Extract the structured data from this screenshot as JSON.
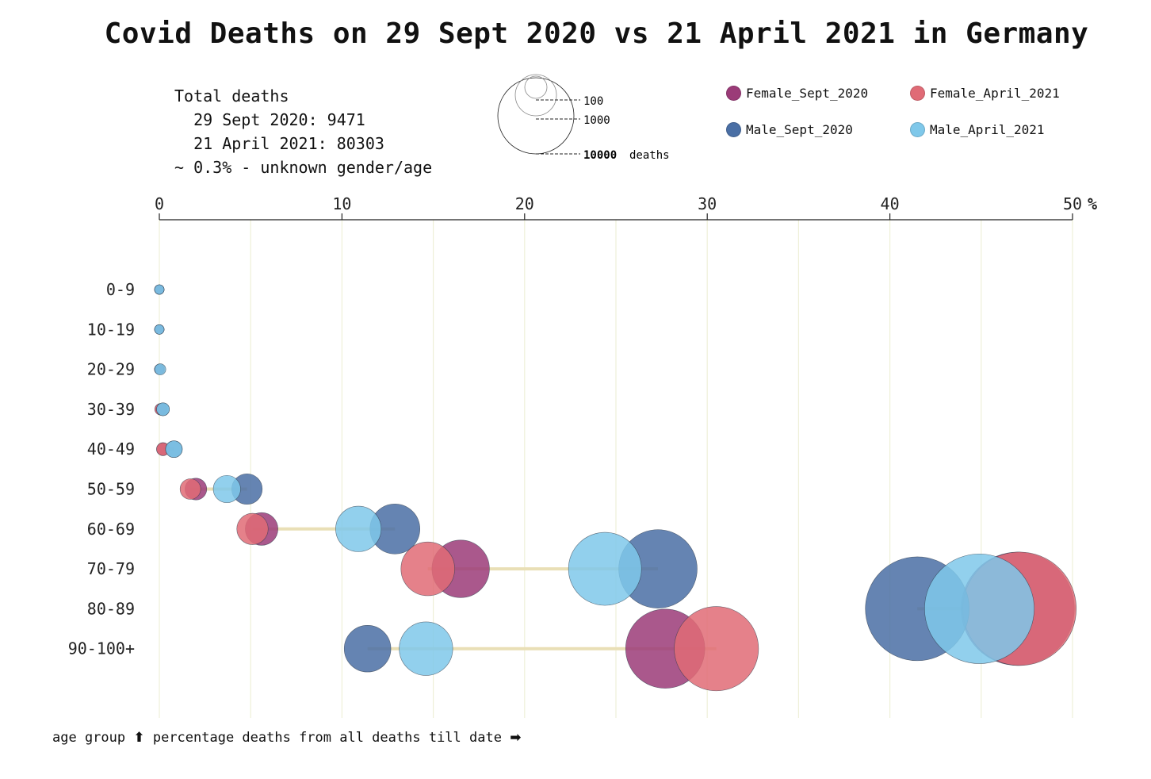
{
  "title": "Covid Deaths on 29 Sept 2020 vs 21 April 2021 in Germany",
  "totals": {
    "heading": "Total deaths",
    "line1": "  29 Sept 2020: 9471",
    "line2": "  21 April 2021: 80303",
    "line3": "~ 0.3% - unknown gender/age"
  },
  "size_legend": {
    "labels": [
      "100",
      "1000",
      "10000"
    ],
    "suffix": "deaths"
  },
  "legend": [
    {
      "name": "Female_Sept_2020",
      "color": "#9b3b78"
    },
    {
      "name": "Female_April_2021",
      "color": "#e06b76"
    },
    {
      "name": "Male_Sept_2020",
      "color": "#4a6fa5"
    },
    {
      "name": "Male_April_2021",
      "color": "#7fc8ea"
    }
  ],
  "footer": {
    "text1": "age group ",
    "arrow_up": "⬆",
    "text2": " percentage deaths from all deaths till date ",
    "arrow_right": "➡"
  },
  "chart_data": {
    "type": "scatter",
    "x_unit": "%",
    "xlim": [
      0,
      50
    ],
    "x_ticks": [
      0,
      10,
      20,
      30,
      40,
      50
    ],
    "categories": [
      "0-9",
      "10-19",
      "20-29",
      "30-39",
      "40-49",
      "50-59",
      "60-69",
      "70-79",
      "80-89",
      "90-100+"
    ],
    "series": [
      {
        "name": "Female_Sept_2020",
        "color": "#9b3b78",
        "x": [
          0,
          0,
          0,
          0.1,
          0.2,
          2.0,
          5.6,
          16.5,
          47.0,
          27.7
        ]
      },
      {
        "name": "Male_Sept_2020",
        "color": "#4a6fa5",
        "x": [
          0,
          0,
          0,
          0.2,
          0.8,
          4.8,
          12.9,
          27.3,
          41.5,
          11.4
        ]
      },
      {
        "name": "Female_April_2021",
        "color": "#e06b76",
        "x": [
          0,
          0,
          0.02,
          0.06,
          0.2,
          1.7,
          5.1,
          14.7,
          47.1,
          30.5
        ]
      },
      {
        "name": "Male_April_2021",
        "color": "#7fc8ea",
        "x": [
          0,
          0,
          0.05,
          0.2,
          0.8,
          3.7,
          10.9,
          24.4,
          44.9,
          14.6
        ]
      }
    ],
    "grid": true,
    "legend_position": "top-right"
  }
}
